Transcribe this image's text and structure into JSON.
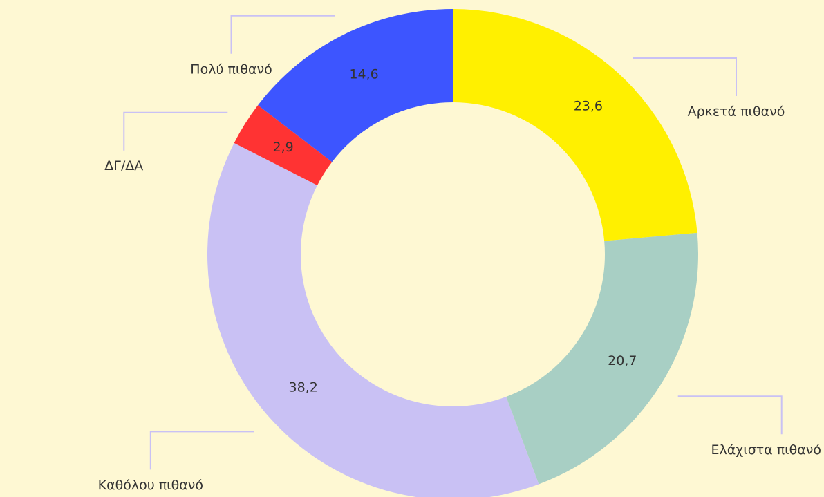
{
  "chart_data": {
    "type": "donut",
    "categories": [
      "Αρκετά πιθανό",
      "Ελάχιστα πιθανό",
      "Καθόλου πιθανό",
      "ΔΓ/ΔΑ",
      "Πολύ πιθανό"
    ],
    "values": [
      23.6,
      20.7,
      38.2,
      2.9,
      14.6
    ],
    "value_labels": [
      "23,6",
      "20,7",
      "38,2",
      "2,9",
      "14,6"
    ],
    "colors": [
      "#FFF000",
      "#A8CFC4",
      "#C9C1F4",
      "#FF3333",
      "#3D55FF"
    ]
  }
}
